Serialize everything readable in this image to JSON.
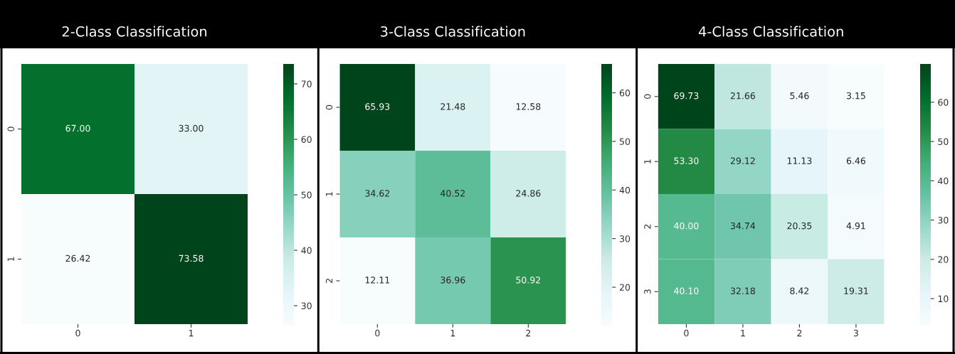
{
  "chart_data": [
    {
      "type": "heatmap",
      "title": "2-Class Classification",
      "categories": [
        "0",
        "1"
      ],
      "y_categories": [
        "0",
        "1"
      ],
      "cells": [
        [
          67.0,
          33.0
        ],
        [
          26.42,
          73.58
        ]
      ],
      "cell_labels": [
        [
          "67.00",
          "33.00"
        ],
        [
          "26.42",
          "73.58"
        ]
      ],
      "clim": [
        26.42,
        73.58
      ],
      "cticks": [
        30,
        40,
        50,
        60,
        70
      ]
    },
    {
      "type": "heatmap",
      "title": "3-Class Classification",
      "categories": [
        "0",
        "1",
        "2"
      ],
      "y_categories": [
        "0",
        "1",
        "2"
      ],
      "cells": [
        [
          65.93,
          21.48,
          12.58
        ],
        [
          34.62,
          40.52,
          24.86
        ],
        [
          12.11,
          36.96,
          50.92
        ]
      ],
      "cell_labels": [
        [
          "65.93",
          "21.48",
          "12.58"
        ],
        [
          "34.62",
          "40.52",
          "24.86"
        ],
        [
          "12.11",
          "36.96",
          "50.92"
        ]
      ],
      "clim": [
        12.11,
        65.93
      ],
      "cticks": [
        20,
        30,
        40,
        50,
        60
      ]
    },
    {
      "type": "heatmap",
      "title": "4-Class Classification",
      "categories": [
        "0",
        "1",
        "2",
        "3"
      ],
      "y_categories": [
        "0",
        "1",
        "2",
        "3"
      ],
      "cells": [
        [
          69.73,
          21.66,
          5.46,
          3.15
        ],
        [
          53.3,
          29.12,
          11.13,
          6.46
        ],
        [
          40.0,
          34.74,
          20.35,
          4.91
        ],
        [
          40.1,
          32.18,
          8.42,
          19.31
        ]
      ],
      "cell_labels": [
        [
          "69.73",
          "21.66",
          "5.46",
          "3.15"
        ],
        [
          "53.30",
          "29.12",
          "11.13",
          "6.46"
        ],
        [
          "40.00",
          "34.74",
          "20.35",
          "4.91"
        ],
        [
          "40.10",
          "32.18",
          "8.42",
          "19.31"
        ]
      ],
      "clim": [
        3.15,
        69.73
      ],
      "cticks": [
        10,
        20,
        30,
        40,
        50,
        60
      ]
    }
  ]
}
